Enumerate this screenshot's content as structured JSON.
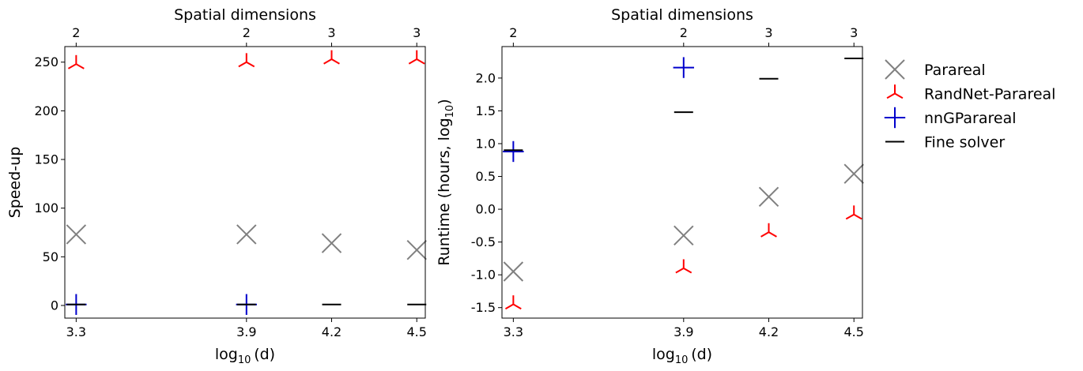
{
  "chart_data": [
    {
      "type": "scatter",
      "xlabel": "log",
      "xlabel_sub": "10",
      "xlabel_arg": "(d)",
      "ylabel": "Speed-up",
      "top_axis_title": "Spatial dimensions",
      "x_ticks": [
        3.3,
        3.9,
        4.2,
        4.5
      ],
      "x_tick_labels": [
        "3.3",
        "3.9",
        "4.2",
        "4.5"
      ],
      "top_tick_labels": [
        "2",
        "2",
        "3",
        "3"
      ],
      "y_ticks": [
        0,
        50,
        100,
        150,
        200,
        250
      ],
      "y_tick_labels": [
        "0",
        "50",
        "100",
        "150",
        "200",
        "250"
      ],
      "xlim": [
        3.26,
        4.53
      ],
      "ylim": [
        -13,
        266
      ],
      "grid": false,
      "series": [
        {
          "name": "Parareal",
          "marker": "x",
          "color": "#808080",
          "x": [
            3.3,
            3.9,
            4.2,
            4.5
          ],
          "y": [
            73,
            73,
            64,
            57
          ]
        },
        {
          "name": "RandNet-Parareal",
          "marker": "tri-down",
          "color": "#ff0000",
          "x": [
            3.3,
            3.9,
            4.2,
            4.5
          ],
          "y": [
            248,
            250,
            253,
            253
          ]
        },
        {
          "name": "nnGParareal",
          "marker": "plus",
          "color": "#0000cc",
          "x": [
            3.3,
            3.9
          ],
          "y": [
            1,
            1
          ]
        },
        {
          "name": "Fine solver",
          "marker": "hline",
          "color": "#000000",
          "x": [
            3.3,
            3.9,
            4.2,
            4.5
          ],
          "y": [
            1,
            1,
            1,
            1
          ]
        }
      ]
    },
    {
      "type": "scatter",
      "xlabel": "log",
      "xlabel_sub": "10",
      "xlabel_arg": "(d)",
      "ylabel": "Runtime (hours, log",
      "ylabel_sub": "10",
      "ylabel_end": ")",
      "top_axis_title": "Spatial dimensions",
      "x_ticks": [
        3.3,
        3.9,
        4.2,
        4.5
      ],
      "x_tick_labels": [
        "3.3",
        "3.9",
        "4.2",
        "4.5"
      ],
      "top_tick_labels": [
        "2",
        "2",
        "3",
        "3"
      ],
      "y_ticks": [
        -1.5,
        -1.0,
        -0.5,
        0.0,
        0.5,
        1.0,
        1.5,
        2.0
      ],
      "y_tick_labels": [
        "-1.5",
        "-1.0",
        "-0.5",
        "0.0",
        "0.5",
        "1.0",
        "1.5",
        "2.0"
      ],
      "xlim": [
        3.26,
        4.53
      ],
      "ylim": [
        -1.66,
        2.48
      ],
      "grid": false,
      "series": [
        {
          "name": "Parareal",
          "marker": "x",
          "color": "#808080",
          "x": [
            3.3,
            3.9,
            4.2,
            4.5
          ],
          "y": [
            -0.95,
            -0.4,
            0.19,
            0.54
          ]
        },
        {
          "name": "RandNet-Parareal",
          "marker": "tri-down",
          "color": "#ff0000",
          "x": [
            3.3,
            3.9,
            4.2,
            4.5
          ],
          "y": [
            -1.45,
            -0.9,
            -0.35,
            -0.08
          ]
        },
        {
          "name": "nnGParareal",
          "marker": "plus",
          "color": "#0000cc",
          "x": [
            3.3,
            3.9
          ],
          "y": [
            0.88,
            2.16
          ]
        },
        {
          "name": "Fine solver",
          "marker": "hline",
          "color": "#000000",
          "x": [
            3.3,
            3.9,
            4.2,
            4.5
          ],
          "y": [
            0.9,
            1.48,
            1.99,
            2.3
          ]
        }
      ]
    }
  ],
  "legend": {
    "placement": "right, outside",
    "entries": [
      {
        "label": "Parareal",
        "marker": "x",
        "color": "#808080"
      },
      {
        "label": "RandNet-Parareal",
        "marker": "tri-down",
        "color": "#ff0000"
      },
      {
        "label": "nnGParareal",
        "marker": "plus",
        "color": "#0000cc"
      },
      {
        "label": "Fine solver",
        "marker": "hline",
        "color": "#000000"
      }
    ]
  }
}
